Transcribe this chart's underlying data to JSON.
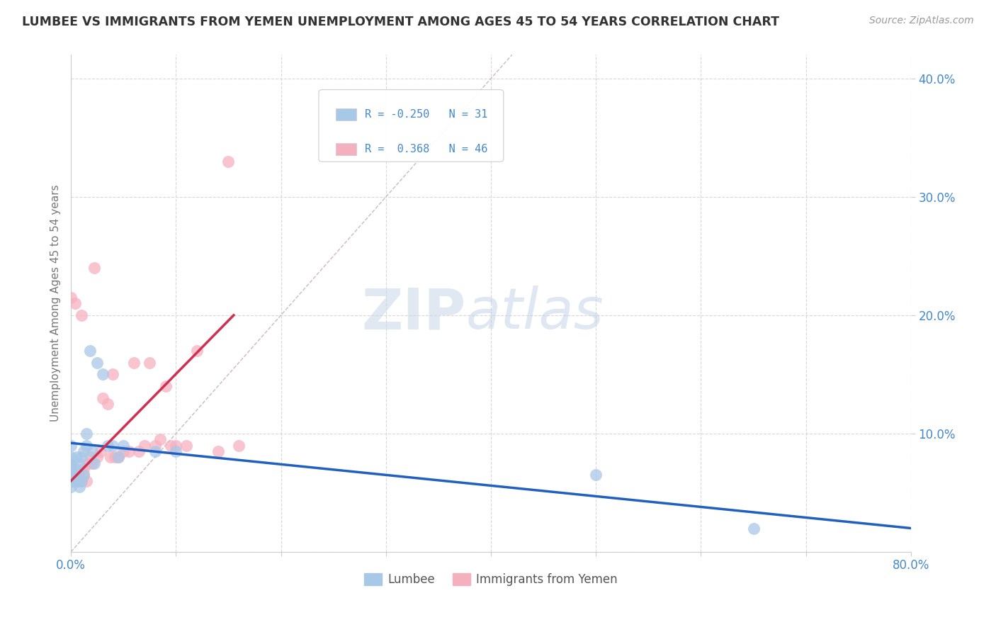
{
  "title": "LUMBEE VS IMMIGRANTS FROM YEMEN UNEMPLOYMENT AMONG AGES 45 TO 54 YEARS CORRELATION CHART",
  "source": "Source: ZipAtlas.com",
  "ylabel": "Unemployment Among Ages 45 to 54 years",
  "xlim": [
    0.0,
    0.8
  ],
  "ylim": [
    0.0,
    0.42
  ],
  "xticks": [
    0.0,
    0.1,
    0.2,
    0.3,
    0.4,
    0.5,
    0.6,
    0.7,
    0.8
  ],
  "xticklabels": [
    "0.0%",
    "",
    "",
    "",
    "",
    "",
    "",
    "",
    "80.0%"
  ],
  "yticks": [
    0.1,
    0.2,
    0.3,
    0.4
  ],
  "yticklabels": [
    "10.0%",
    "20.0%",
    "30.0%",
    "40.0%"
  ],
  "lumbee_R": -0.25,
  "lumbee_N": 31,
  "yemen_R": 0.368,
  "yemen_N": 46,
  "lumbee_color": "#a8c8e8",
  "yemen_color": "#f5b0c0",
  "lumbee_line_color": "#2060c0",
  "yemen_line_color": "#d03050",
  "diagonal_color": "#d0b8b8",
  "background_color": "#ffffff",
  "grid_color": "#d8d8d8",
  "tick_label_color": "#4488cc",
  "lumbee_x": [
    0.0,
    0.0,
    0.0,
    0.0,
    0.0,
    0.0,
    0.0,
    0.005,
    0.005,
    0.005,
    0.008,
    0.008,
    0.01,
    0.01,
    0.012,
    0.012,
    0.015,
    0.015,
    0.018,
    0.02,
    0.022,
    0.025,
    0.03,
    0.035,
    0.04,
    0.045,
    0.05,
    0.08,
    0.1,
    0.5,
    0.65
  ],
  "lumbee_y": [
    0.055,
    0.06,
    0.065,
    0.07,
    0.075,
    0.08,
    0.09,
    0.06,
    0.07,
    0.08,
    0.055,
    0.075,
    0.06,
    0.08,
    0.065,
    0.085,
    0.09,
    0.1,
    0.17,
    0.085,
    0.075,
    0.16,
    0.15,
    0.09,
    0.09,
    0.08,
    0.09,
    0.085,
    0.085,
    0.065,
    0.02
  ],
  "yemen_x": [
    0.0,
    0.0,
    0.0,
    0.0,
    0.0,
    0.002,
    0.002,
    0.004,
    0.004,
    0.005,
    0.006,
    0.008,
    0.008,
    0.01,
    0.01,
    0.012,
    0.012,
    0.015,
    0.016,
    0.018,
    0.02,
    0.022,
    0.025,
    0.028,
    0.03,
    0.035,
    0.038,
    0.04,
    0.042,
    0.045,
    0.05,
    0.055,
    0.06,
    0.065,
    0.07,
    0.075,
    0.08,
    0.085,
    0.09,
    0.095,
    0.1,
    0.11,
    0.12,
    0.14,
    0.15,
    0.16
  ],
  "yemen_y": [
    0.06,
    0.065,
    0.07,
    0.075,
    0.215,
    0.06,
    0.065,
    0.06,
    0.21,
    0.06,
    0.065,
    0.06,
    0.065,
    0.06,
    0.2,
    0.065,
    0.07,
    0.06,
    0.075,
    0.08,
    0.075,
    0.24,
    0.08,
    0.085,
    0.13,
    0.125,
    0.08,
    0.15,
    0.08,
    0.08,
    0.085,
    0.085,
    0.16,
    0.085,
    0.09,
    0.16,
    0.09,
    0.095,
    0.14,
    0.09,
    0.09,
    0.09,
    0.17,
    0.085,
    0.33,
    0.09
  ],
  "lumbee_line_x": [
    0.0,
    0.8
  ],
  "lumbee_line_y": [
    0.092,
    0.02
  ],
  "yemen_line_x": [
    0.0,
    0.155
  ],
  "yemen_line_y": [
    0.06,
    0.2
  ],
  "watermark_zip": "ZIP",
  "watermark_atlas": "atlas",
  "legend_label1": "Lumbee",
  "legend_label2": "Immigrants from Yemen"
}
